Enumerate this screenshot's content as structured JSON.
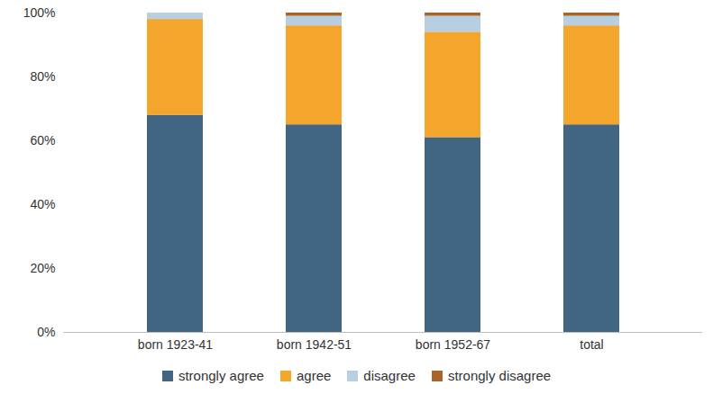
{
  "chart_data": {
    "type": "bar",
    "stacked": true,
    "legend": "bottom",
    "categories": [
      "born 1923-41",
      "born 1942-51",
      "born 1952-67",
      "total"
    ],
    "series": [
      {
        "name": "strongly agree",
        "color": "#426582",
        "values": [
          68,
          65,
          61,
          65
        ]
      },
      {
        "name": "agree",
        "color": "#f4a52b",
        "values": [
          30,
          31,
          33,
          31
        ]
      },
      {
        "name": "disagree",
        "color": "#b7cfe0",
        "values": [
          2,
          3,
          5,
          3
        ]
      },
      {
        "name": "strongly disagree",
        "color": "#a8652a",
        "values": [
          0,
          1,
          1,
          1
        ]
      }
    ],
    "ylim": [
      0,
      100
    ],
    "yticks": [
      {
        "value": 0,
        "label": "0%"
      },
      {
        "value": 20,
        "label": "20%"
      },
      {
        "value": 40,
        "label": "40%"
      },
      {
        "value": 60,
        "label": "60%"
      },
      {
        "value": 80,
        "label": "80%"
      },
      {
        "value": 100,
        "label": "100%"
      }
    ],
    "grid": false
  }
}
